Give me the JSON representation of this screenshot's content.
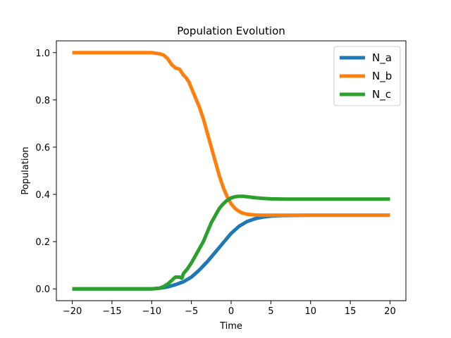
{
  "chart_data": {
    "type": "line",
    "title": "Population Evolution",
    "xlabel": "Time",
    "ylabel": "Population",
    "xlim": [
      -22,
      22
    ],
    "ylim": [
      -0.05,
      1.05
    ],
    "grid": false,
    "legend_position": "top-right",
    "xticks": [
      -20,
      -15,
      -10,
      -5,
      0,
      5,
      10,
      15,
      20
    ],
    "xtick_labels": [
      "−20",
      "−15",
      "−10",
      "−5",
      "0",
      "5",
      "10",
      "15",
      "20"
    ],
    "yticks": [
      0.0,
      0.2,
      0.4,
      0.6,
      0.8,
      1.0
    ],
    "ytick_labels": [
      "0.0",
      "0.2",
      "0.4",
      "0.6",
      "0.8",
      "1.0"
    ],
    "series": [
      {
        "name": "N_a",
        "color": "#1f77b4",
        "x": [
          -20,
          -10,
          -9,
          -8,
          -7,
          -6,
          -5,
          -4,
          -3,
          -2,
          -1,
          0,
          1,
          2,
          3,
          4,
          5,
          6,
          8,
          10,
          15,
          20
        ],
        "y": [
          0.0,
          0.0,
          0.003,
          0.008,
          0.018,
          0.03,
          0.05,
          0.08,
          0.115,
          0.155,
          0.195,
          0.235,
          0.265,
          0.285,
          0.297,
          0.304,
          0.308,
          0.31,
          0.311,
          0.312,
          0.312,
          0.312
        ]
      },
      {
        "name": "N_b",
        "color": "#ff7f0e",
        "x": [
          -20,
          -10,
          -9,
          -8.5,
          -8,
          -7.5,
          -7,
          -6.5,
          -6,
          -5.7,
          -5.3,
          -5,
          -4.5,
          -4,
          -3.5,
          -3,
          -2.5,
          -2,
          -1.5,
          -1,
          -0.5,
          0,
          0.5,
          1,
          1.5,
          2,
          3,
          4,
          5,
          7,
          10,
          15,
          20
        ],
        "y": [
          1.0,
          1.0,
          0.995,
          0.99,
          0.975,
          0.95,
          0.935,
          0.93,
          0.905,
          0.895,
          0.875,
          0.85,
          0.81,
          0.77,
          0.72,
          0.66,
          0.6,
          0.54,
          0.48,
          0.43,
          0.39,
          0.36,
          0.34,
          0.328,
          0.32,
          0.316,
          0.313,
          0.312,
          0.312,
          0.312,
          0.312,
          0.312,
          0.312
        ]
      },
      {
        "name": "N_c",
        "color": "#2ca02c",
        "x": [
          -20,
          -10,
          -9,
          -8.5,
          -8,
          -7.5,
          -7.2,
          -7,
          -6.5,
          -6.2,
          -6,
          -5.5,
          -5,
          -4.5,
          -4,
          -3.5,
          -3,
          -2.5,
          -2,
          -1.5,
          -1,
          -0.5,
          0,
          0.5,
          1,
          1.5,
          2,
          3,
          4,
          5,
          7,
          10,
          15,
          20
        ],
        "y": [
          0.0,
          0.0,
          0.003,
          0.01,
          0.02,
          0.035,
          0.045,
          0.05,
          0.05,
          0.045,
          0.065,
          0.085,
          0.11,
          0.14,
          0.17,
          0.2,
          0.24,
          0.28,
          0.31,
          0.34,
          0.36,
          0.375,
          0.385,
          0.39,
          0.392,
          0.392,
          0.39,
          0.386,
          0.383,
          0.381,
          0.38,
          0.38,
          0.38,
          0.38
        ]
      }
    ]
  }
}
